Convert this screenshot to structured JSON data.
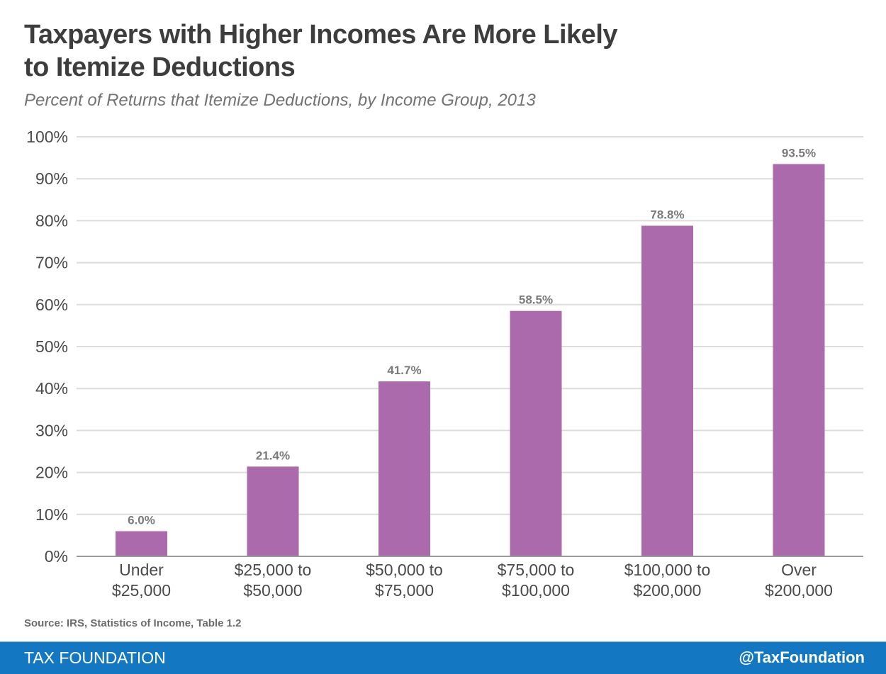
{
  "header": {
    "title_line1": "Taxpayers with Higher Incomes Are More Likely",
    "title_line2": "to Itemize Deductions",
    "subtitle": "Percent of Returns that Itemize Deductions, by Income Group, 2013"
  },
  "source": "Source: IRS, Statistics of Income, Table 1.2",
  "footer": {
    "brand": "TAX FOUNDATION",
    "handle": "@TaxFoundation"
  },
  "colors": {
    "bar": "#ab6aab",
    "footer_bg": "#1378c1",
    "grid": "#dcdcdc",
    "axis": "#9a9a9a"
  },
  "chart_data": {
    "type": "bar",
    "title": "Taxpayers with Higher Incomes Are More Likely to Itemize Deductions",
    "subtitle": "Percent of Returns that Itemize Deductions, by Income Group, 2013",
    "xlabel": "",
    "ylabel": "",
    "categories": [
      [
        "Under",
        "$25,000"
      ],
      [
        "$25,000 to",
        "$50,000"
      ],
      [
        "$50,000 to",
        "$75,000"
      ],
      [
        "$75,000 to",
        "$100,000"
      ],
      [
        "$100,000 to",
        "$200,000"
      ],
      [
        "Over",
        "$200,000"
      ]
    ],
    "values": [
      6.0,
      21.4,
      41.7,
      58.5,
      78.8,
      93.5
    ],
    "data_labels": [
      "6.0%",
      "21.4%",
      "41.7%",
      "58.5%",
      "78.8%",
      "93.5%"
    ],
    "ylim": [
      0,
      100
    ],
    "yticks": [
      0,
      10,
      20,
      30,
      40,
      50,
      60,
      70,
      80,
      90,
      100
    ],
    "ytick_labels": [
      "0%",
      "10%",
      "20%",
      "30%",
      "40%",
      "50%",
      "60%",
      "70%",
      "80%",
      "90%",
      "100%"
    ],
    "grid": true,
    "legend": "none"
  }
}
